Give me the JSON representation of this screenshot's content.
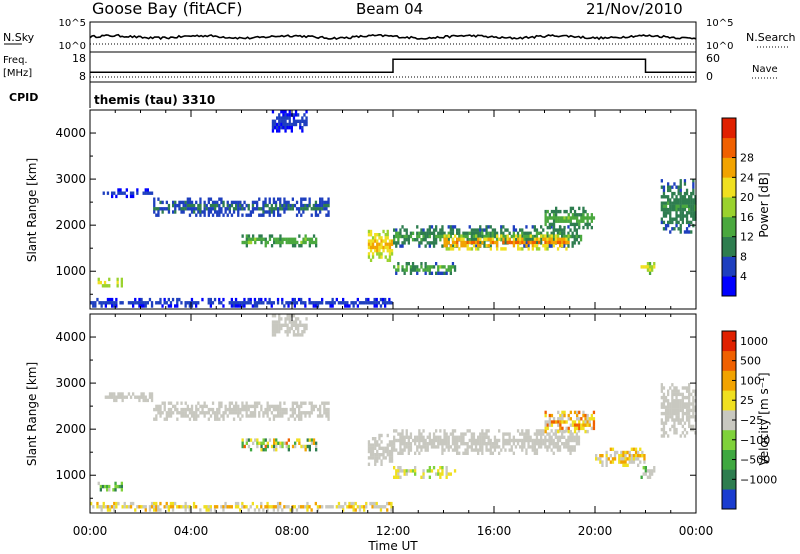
{
  "header": {
    "station": "Goose Bay (fitACF)",
    "beam": "Beam 04",
    "date": "21/Nov/2010"
  },
  "chart_data": [
    {
      "type": "line",
      "panel": "noise",
      "left_label": "N.Sky",
      "right_label": "N.Search",
      "left_ticks": [
        "10^5",
        "10^0"
      ],
      "right_ticks": [
        "10^5",
        "10^0"
      ]
    },
    {
      "type": "line",
      "panel": "frequency",
      "left_label_1": "Freq.",
      "left_label_2": "[MHz]",
      "left_ticks": [
        "18",
        "8"
      ],
      "ylim": [
        8,
        18
      ],
      "right_label": "Nave",
      "right_ticks": [
        "60",
        "0"
      ],
      "series": [
        {
          "x": [
            0,
            12,
            22,
            24
          ],
          "y": [
            11,
            16,
            11,
            11
          ]
        }
      ]
    },
    {
      "type": "table",
      "panel": "cpid",
      "label": "CPID",
      "text": "themis (tau) 3310"
    },
    {
      "type": "heatmap",
      "panel": "power",
      "ylabel": "Slant Range [km]",
      "yticks": [
        1000,
        2000,
        3000,
        4000
      ],
      "ylim": [
        180,
        4500
      ],
      "colorbar_label": "Power [dB]",
      "colorbar_ticks": [
        "4",
        "8",
        "12",
        "16",
        "20",
        "24",
        "28"
      ],
      "colors": [
        "#0000ff",
        "#1e3fbf",
        "#2e7d4f",
        "#4aa83e",
        "#9ad22e",
        "#f0e020",
        "#f2a300",
        "#f06000",
        "#e02000"
      ],
      "blobs": [
        {
          "t": [
            0.3,
            1.3
          ],
          "r": [
            660,
            860
          ],
          "v": [
            16,
            24
          ]
        },
        {
          "t": [
            0,
            12
          ],
          "r": [
            180,
            420
          ],
          "v": [
            2,
            8
          ]
        },
        {
          "t": [
            0.5,
            2.5
          ],
          "r": [
            2600,
            2800
          ],
          "v": [
            2,
            6
          ]
        },
        {
          "t": [
            2.5,
            9.5
          ],
          "r": [
            2200,
            2600
          ],
          "v": [
            4,
            10
          ]
        },
        {
          "t": [
            6,
            9
          ],
          "r": [
            1550,
            1800
          ],
          "v": [
            8,
            18
          ]
        },
        {
          "t": [
            11,
            12
          ],
          "r": [
            1200,
            1900
          ],
          "v": [
            16,
            26
          ]
        },
        {
          "t": [
            12,
            14.5
          ],
          "r": [
            900,
            1200
          ],
          "v": [
            6,
            18
          ]
        },
        {
          "t": [
            12,
            19.5
          ],
          "r": [
            1500,
            2000
          ],
          "v": [
            6,
            14
          ]
        },
        {
          "t": [
            14,
            19
          ],
          "r": [
            1450,
            1800
          ],
          "v": [
            18,
            30
          ]
        },
        {
          "t": [
            18,
            20
          ],
          "r": [
            1900,
            2400
          ],
          "v": [
            8,
            16
          ]
        },
        {
          "t": [
            21.8,
            22.4
          ],
          "r": [
            900,
            1200
          ],
          "v": [
            14,
            26
          ]
        },
        {
          "t": [
            22.6,
            24
          ],
          "r": [
            1800,
            3000
          ],
          "v": [
            6,
            12
          ]
        },
        {
          "t": [
            7.2,
            8.6
          ],
          "r": [
            4000,
            4500
          ],
          "v": [
            2,
            6
          ]
        }
      ]
    },
    {
      "type": "heatmap",
      "panel": "velocity",
      "ylabel": "Slant Range [km]",
      "yticks": [
        1000,
        2000,
        3000,
        4000
      ],
      "ylim": [
        180,
        4500
      ],
      "xlabel": "Time UT",
      "xticks": [
        "00:00",
        "04:00",
        "08:00",
        "12:00",
        "16:00",
        "20:00",
        "00:00"
      ],
      "xlim": [
        0,
        24
      ],
      "colorbar_label": "Velocity [m s⁻¹]",
      "colorbar_ticks": [
        "1000",
        "500",
        "100",
        "25",
        "−25",
        "−100",
        "−500",
        "−1000"
      ],
      "colors": [
        "#1a3ccf",
        "#2e7d4f",
        "#3fa840",
        "#7fd23a",
        "#c8c8c0",
        "#f0e020",
        "#f2a300",
        "#f06000",
        "#e02000"
      ],
      "blobs": [
        {
          "t": [
            0.3,
            1.3
          ],
          "r": [
            660,
            860
          ],
          "v": [
            1,
            3
          ]
        },
        {
          "t": [
            0,
            12
          ],
          "r": [
            180,
            420
          ],
          "v": [
            4,
            6
          ]
        },
        {
          "t": [
            0.5,
            2.5
          ],
          "r": [
            2600,
            2800
          ],
          "v": [
            4,
            4
          ]
        },
        {
          "t": [
            2.5,
            9.5
          ],
          "r": [
            2200,
            2600
          ],
          "v": [
            4,
            4
          ]
        },
        {
          "t": [
            6,
            9
          ],
          "r": [
            1550,
            1800
          ],
          "v": [
            1,
            7
          ]
        },
        {
          "t": [
            11,
            12
          ],
          "r": [
            1200,
            1900
          ],
          "v": [
            4,
            4
          ]
        },
        {
          "t": [
            12,
            14.5
          ],
          "r": [
            900,
            1200
          ],
          "v": [
            3,
            5
          ]
        },
        {
          "t": [
            12,
            19.5
          ],
          "r": [
            1450,
            2000
          ],
          "v": [
            4,
            4
          ]
        },
        {
          "t": [
            18,
            20
          ],
          "r": [
            1900,
            2400
          ],
          "v": [
            4,
            7
          ]
        },
        {
          "t": [
            20,
            22
          ],
          "r": [
            1200,
            1600
          ],
          "v": [
            4,
            6
          ]
        },
        {
          "t": [
            21.8,
            22.4
          ],
          "r": [
            900,
            1200
          ],
          "v": [
            2,
            4
          ]
        },
        {
          "t": [
            22.6,
            24
          ],
          "r": [
            1800,
            3000
          ],
          "v": [
            4,
            4
          ]
        },
        {
          "t": [
            7.2,
            8.6
          ],
          "r": [
            4000,
            4500
          ],
          "v": [
            4,
            4
          ]
        }
      ]
    }
  ]
}
